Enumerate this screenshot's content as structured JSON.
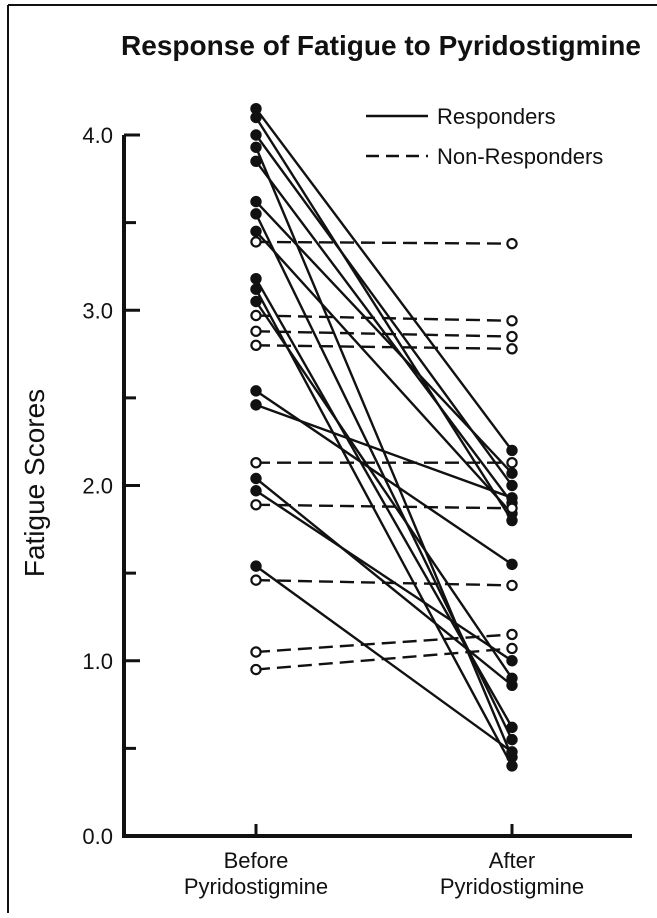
{
  "chart_data": {
    "type": "line",
    "title": "Response of Fatigue to Pyridostigmine",
    "ylabel": "Fatigue Scores",
    "categories": [
      "Before Pyridostigmine",
      "After Pyridostigmine"
    ],
    "category_lines": [
      [
        "Before",
        "Pyridostigmine"
      ],
      [
        "After",
        "Pyridostigmine"
      ]
    ],
    "ylim": [
      0.0,
      4.0
    ],
    "ytick_labels": [
      {
        "value": 0.0,
        "label": "0.0"
      },
      {
        "value": 1.0,
        "label": "1.0"
      },
      {
        "value": 2.0,
        "label": "2.0"
      },
      {
        "value": 3.0,
        "label": "3.0"
      },
      {
        "value": 4.0,
        "label": "4.0"
      }
    ],
    "minor_ticks": [
      0.5,
      1.5,
      2.5,
      3.5
    ],
    "legend": {
      "placement": "top-right",
      "entries": [
        {
          "label": "Responders",
          "style": "solid",
          "marker": "filled"
        },
        {
          "label": "Non-Responders",
          "style": "dashed",
          "marker": "open"
        }
      ]
    },
    "series": [
      {
        "group": "Responders",
        "values": [
          4.15,
          2.2
        ]
      },
      {
        "group": "Responders",
        "values": [
          4.1,
          1.8
        ]
      },
      {
        "group": "Responders",
        "values": [
          4.0,
          2.0
        ]
      },
      {
        "group": "Responders",
        "values": [
          3.93,
          0.45
        ]
      },
      {
        "group": "Responders",
        "values": [
          3.85,
          1.9
        ]
      },
      {
        "group": "Responders",
        "values": [
          3.62,
          2.07
        ]
      },
      {
        "group": "Responders",
        "values": [
          3.55,
          0.55
        ]
      },
      {
        "group": "Responders",
        "values": [
          3.45,
          1.84
        ]
      },
      {
        "group": "Responders",
        "values": [
          3.18,
          0.62
        ]
      },
      {
        "group": "Responders",
        "values": [
          3.12,
          0.4
        ]
      },
      {
        "group": "Responders",
        "values": [
          3.05,
          0.9
        ]
      },
      {
        "group": "Responders",
        "values": [
          2.54,
          1.55
        ]
      },
      {
        "group": "Responders",
        "values": [
          2.46,
          1.93
        ]
      },
      {
        "group": "Responders",
        "values": [
          2.04,
          0.86
        ]
      },
      {
        "group": "Responders",
        "values": [
          1.97,
          1.0
        ]
      },
      {
        "group": "Responders",
        "values": [
          1.54,
          0.48
        ]
      },
      {
        "group": "Non-Responders",
        "values": [
          3.39,
          3.38
        ]
      },
      {
        "group": "Non-Responders",
        "values": [
          2.97,
          2.94
        ]
      },
      {
        "group": "Non-Responders",
        "values": [
          2.88,
          2.85
        ]
      },
      {
        "group": "Non-Responders",
        "values": [
          2.8,
          2.78
        ]
      },
      {
        "group": "Non-Responders",
        "values": [
          2.13,
          2.13
        ]
      },
      {
        "group": "Non-Responders",
        "values": [
          1.89,
          1.87
        ]
      },
      {
        "group": "Non-Responders",
        "values": [
          1.46,
          1.43
        ]
      },
      {
        "group": "Non-Responders",
        "values": [
          1.05,
          1.15
        ]
      },
      {
        "group": "Non-Responders",
        "values": [
          0.95,
          1.07
        ]
      }
    ]
  }
}
